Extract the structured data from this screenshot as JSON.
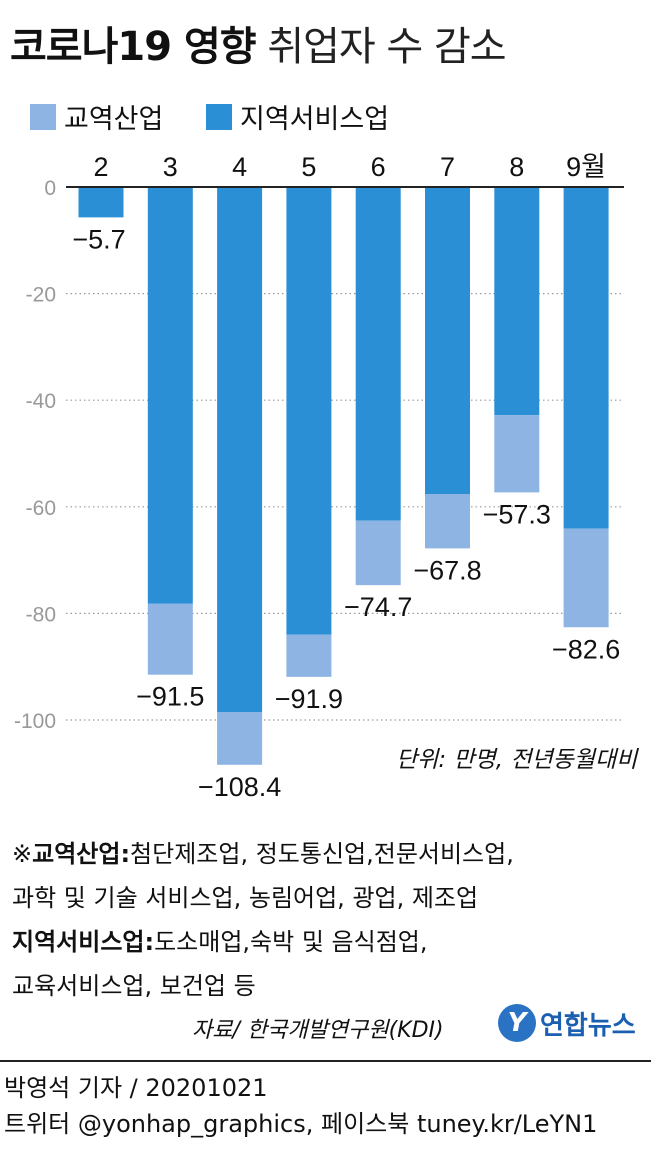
{
  "title": {
    "bold": "코로나19 영향",
    "light": "취업자 수 감소"
  },
  "legend": [
    {
      "label": "교역산업",
      "color": "#8db4e2"
    },
    {
      "label": "지역서비스업",
      "color": "#2b8fd6"
    }
  ],
  "chart_data": {
    "type": "bar",
    "stacked": true,
    "categories": [
      "2",
      "3",
      "4",
      "5",
      "6",
      "7",
      "8",
      "9월"
    ],
    "series": [
      {
        "name": "지역서비스업",
        "color": "#2b8fd6",
        "values": [
          -5.7,
          -78.2,
          -98.5,
          -84.0,
          -62.6,
          -57.6,
          -42.8,
          -64.1
        ]
      },
      {
        "name": "교역산업",
        "color": "#8db4e2",
        "values": [
          0,
          -13.3,
          -9.9,
          -7.9,
          -12.1,
          -10.2,
          -14.5,
          -18.5
        ]
      }
    ],
    "totals": [
      -5.7,
      -91.5,
      -108.4,
      -91.9,
      -74.7,
      -67.8,
      -57.3,
      -82.6
    ],
    "total_labels": [
      "−5.7",
      "−91.5",
      "−108.4",
      "−91.9",
      "−74.7",
      "−67.8",
      "−57.3",
      "−82.6"
    ],
    "yticks": [
      0,
      -20,
      -40,
      -60,
      -80,
      -100
    ],
    "ytick_labels": [
      "0",
      "-20",
      "-40",
      "-60",
      "-80",
      "-100"
    ],
    "ylim": [
      -110,
      0
    ],
    "grid": true,
    "legend_position": "top-left"
  },
  "unit_note": "단위: 만명, 전년동월대비",
  "notes": {
    "trade_term": "교역산업",
    "trade_desc_1": "첨단제조업, 정도통신업,전문서비스업,",
    "trade_desc_2": "과학 및 기술 서비스업, 농림어업, 광업, 제조업",
    "service_term": "지역서비스업",
    "service_desc_1": "도소매업,숙박 및 음식점업,",
    "service_desc_2": "교육서비스업, 보건업 등",
    "mark": "※",
    "colon": ":"
  },
  "source": "자료/ 한국개발연구원(KDI)",
  "logo": {
    "mark": "Y",
    "name": "연합뉴스"
  },
  "credit": {
    "line1": "박영석 기자 /  20201021",
    "line2": "트위터 @yonhap_graphics, 페이스북 tuney.kr/LeYN1"
  }
}
